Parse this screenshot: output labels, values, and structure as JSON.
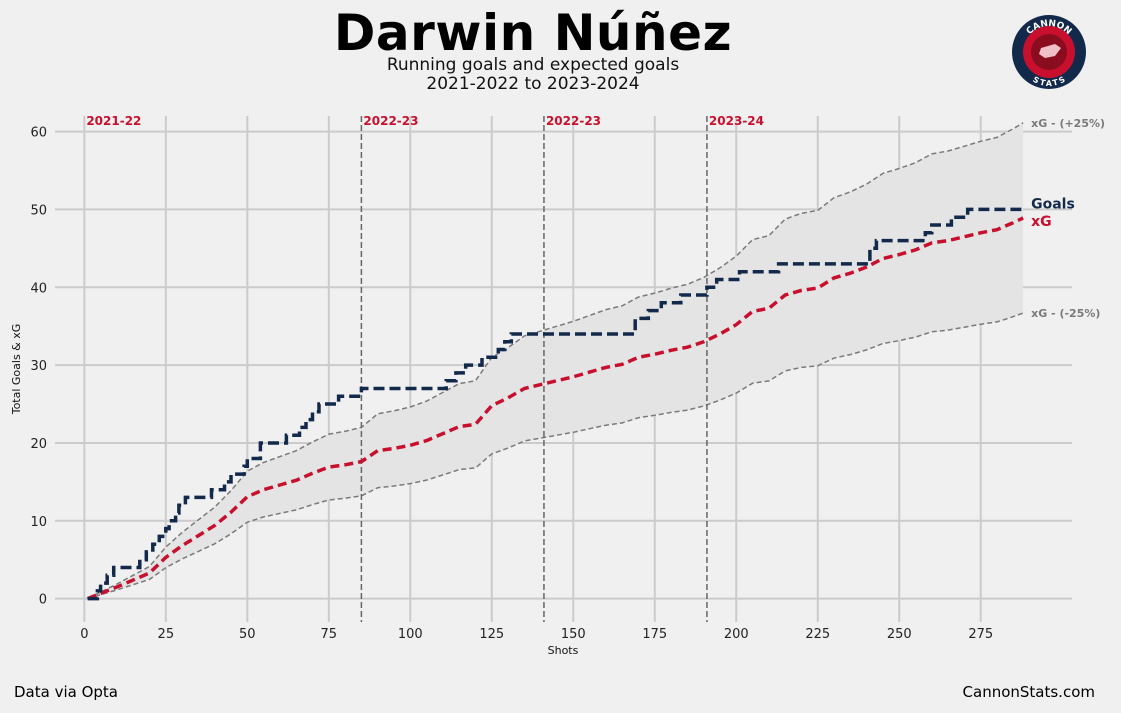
{
  "header": {
    "title": "Darwin Núñez",
    "subtitle_line1": "Running goals and expected goals",
    "subtitle_line2": "2021-2022 to 2023-2024"
  },
  "logo": {
    "text_top": "CANNON",
    "text_bottom": "STATS",
    "icon": "cannon-stats-logo"
  },
  "footer": {
    "source": "Data via Opta",
    "site": "CannonStats.com"
  },
  "colors": {
    "goals": "#13294b",
    "xg": "#c8102e",
    "band": "#7a7a7a",
    "band_fill": "#e4e4e4",
    "background": "#f0f0f0"
  },
  "chart_data": {
    "type": "line",
    "title": "Darwin Núñez",
    "xlabel": "Shots",
    "ylabel": "Total Goals & xG",
    "xlim": [
      -9,
      303
    ],
    "ylim": [
      -3,
      62
    ],
    "xticks": [
      0,
      25,
      50,
      75,
      100,
      125,
      150,
      175,
      200,
      225,
      250,
      275
    ],
    "yticks": [
      0,
      10,
      20,
      30,
      40,
      50,
      60
    ],
    "grid": true,
    "season_markers": [
      {
        "x": 0,
        "label": "2021-22",
        "line": false
      },
      {
        "x": 85,
        "label": "2022-23",
        "line": true
      },
      {
        "x": 141,
        "label": "2022-23",
        "line": true
      },
      {
        "x": 191,
        "label": "2023-24",
        "line": true
      }
    ],
    "series": [
      {
        "name": "Goals",
        "style": "step-dashed",
        "points": [
          [
            1,
            0
          ],
          [
            4,
            1
          ],
          [
            5,
            2
          ],
          [
            7,
            3
          ],
          [
            9,
            4
          ],
          [
            16,
            4
          ],
          [
            17,
            5
          ],
          [
            19,
            6
          ],
          [
            21,
            7
          ],
          [
            23,
            8
          ],
          [
            25,
            9
          ],
          [
            26,
            10
          ],
          [
            28,
            11
          ],
          [
            29,
            12
          ],
          [
            31,
            13
          ],
          [
            38,
            13
          ],
          [
            39,
            14
          ],
          [
            42,
            14
          ],
          [
            43,
            15
          ],
          [
            45,
            16
          ],
          [
            49,
            17
          ],
          [
            50,
            18
          ],
          [
            53,
            18
          ],
          [
            54,
            20
          ],
          [
            60,
            20
          ],
          [
            62,
            21
          ],
          [
            66,
            22
          ],
          [
            68,
            23
          ],
          [
            70,
            24
          ],
          [
            72,
            25
          ],
          [
            76,
            25
          ],
          [
            78,
            26
          ],
          [
            84,
            26
          ],
          [
            85,
            27
          ],
          [
            110,
            27
          ],
          [
            111,
            28
          ],
          [
            114,
            29
          ],
          [
            117,
            30
          ],
          [
            122,
            31
          ],
          [
            127,
            32
          ],
          [
            129,
            33
          ],
          [
            131,
            34
          ],
          [
            156,
            34
          ],
          [
            167,
            34
          ],
          [
            169,
            36
          ],
          [
            173,
            37
          ],
          [
            177,
            38
          ],
          [
            183,
            39
          ],
          [
            188,
            39
          ],
          [
            191,
            40
          ],
          [
            194,
            41
          ],
          [
            201,
            42
          ],
          [
            207,
            42
          ],
          [
            213,
            43
          ],
          [
            237,
            43
          ],
          [
            241,
            45
          ],
          [
            243,
            46
          ],
          [
            255,
            46
          ],
          [
            258,
            47
          ],
          [
            260,
            48
          ],
          [
            266,
            49
          ],
          [
            271,
            50
          ],
          [
            288,
            50
          ]
        ],
        "end_value": 50
      },
      {
        "name": "xG",
        "style": "dashed",
        "points": [
          [
            1,
            0
          ],
          [
            10,
            1.5
          ],
          [
            20,
            3.3
          ],
          [
            25,
            5.3
          ],
          [
            30,
            6.8
          ],
          [
            35,
            8.1
          ],
          [
            40,
            9.4
          ],
          [
            45,
            11.1
          ],
          [
            50,
            13.1
          ],
          [
            55,
            14.0
          ],
          [
            60,
            14.6
          ],
          [
            65,
            15.2
          ],
          [
            70,
            16.1
          ],
          [
            75,
            16.9
          ],
          [
            80,
            17.2
          ],
          [
            85,
            17.6
          ],
          [
            90,
            19.0
          ],
          [
            95,
            19.3
          ],
          [
            100,
            19.7
          ],
          [
            105,
            20.3
          ],
          [
            110,
            21.2
          ],
          [
            115,
            22.1
          ],
          [
            120,
            22.4
          ],
          [
            125,
            24.8
          ],
          [
            130,
            25.8
          ],
          [
            135,
            27.0
          ],
          [
            140,
            27.5
          ],
          [
            145,
            28.0
          ],
          [
            150,
            28.5
          ],
          [
            155,
            29.1
          ],
          [
            160,
            29.7
          ],
          [
            165,
            30.1
          ],
          [
            170,
            31.0
          ],
          [
            175,
            31.4
          ],
          [
            180,
            31.9
          ],
          [
            185,
            32.3
          ],
          [
            190,
            33.0
          ],
          [
            195,
            34.0
          ],
          [
            200,
            35.2
          ],
          [
            205,
            36.9
          ],
          [
            210,
            37.3
          ],
          [
            215,
            39.0
          ],
          [
            220,
            39.6
          ],
          [
            225,
            39.9
          ],
          [
            230,
            41.2
          ],
          [
            235,
            41.8
          ],
          [
            240,
            42.6
          ],
          [
            245,
            43.7
          ],
          [
            250,
            44.2
          ],
          [
            255,
            44.8
          ],
          [
            260,
            45.7
          ],
          [
            265,
            46.0
          ],
          [
            270,
            46.5
          ],
          [
            275,
            47.0
          ],
          [
            280,
            47.4
          ],
          [
            285,
            48.3
          ],
          [
            288,
            48.9
          ]
        ],
        "end_value": 48.9
      }
    ],
    "band": {
      "upper_name": "xG - (+25%)",
      "lower_name": "xG - (-25%)",
      "factor": 0.25
    }
  }
}
